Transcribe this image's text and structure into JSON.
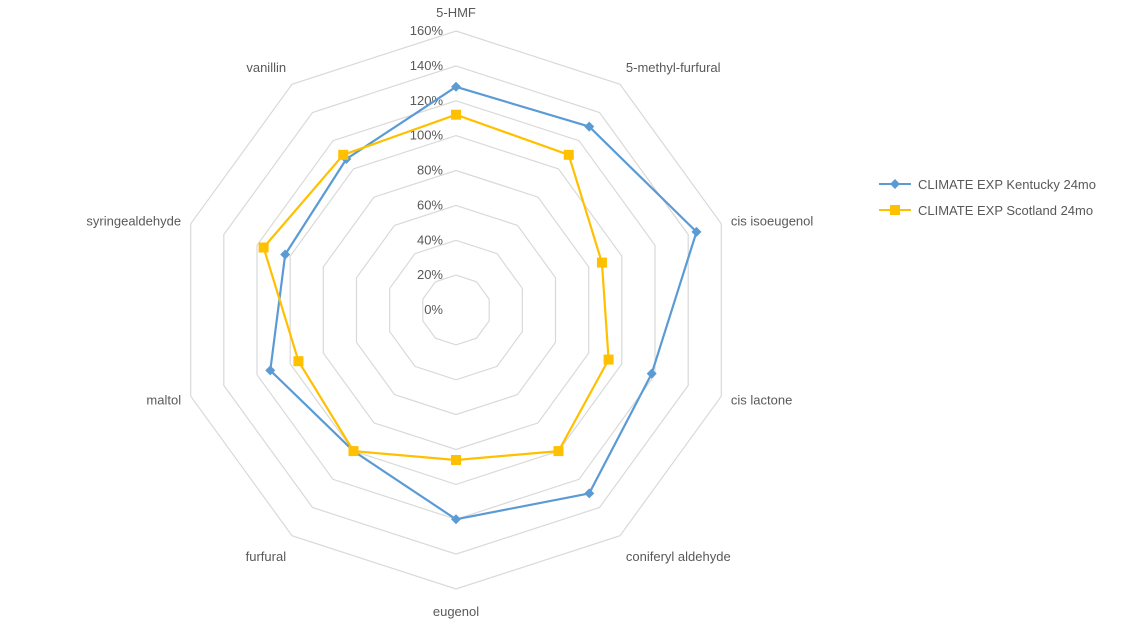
{
  "chart_data": {
    "type": "radar",
    "title": "",
    "categories": [
      "5-HMF",
      "5-methyl-furfural",
      "cis isoeugenol",
      "cis lactone",
      "coniferyl aldehyde",
      "eugenol",
      "furfural",
      "maltol",
      "syringealdehyde",
      "vanillin"
    ],
    "series": [
      {
        "name": "CLIMATE EXP Kentucky 24mo",
        "color": "#5B9BD5",
        "marker": "diamond",
        "values": [
          1.28,
          1.3,
          1.45,
          1.18,
          1.3,
          1.2,
          1.0,
          1.12,
          1.03,
          1.07
        ]
      },
      {
        "name": "CLIMATE EXP Scotland 24mo",
        "color": "#FFC000",
        "marker": "square",
        "values": [
          1.12,
          1.1,
          0.88,
          0.92,
          1.0,
          0.86,
          1.0,
          0.95,
          1.16,
          1.1
        ]
      }
    ],
    "axis": {
      "min": 0,
      "max": 1.6,
      "ticks": [
        "0%",
        "20%",
        "40%",
        "60%",
        "80%",
        "100%",
        "120%",
        "140%",
        "160%"
      ]
    },
    "grid": true,
    "legend_position": "right"
  }
}
